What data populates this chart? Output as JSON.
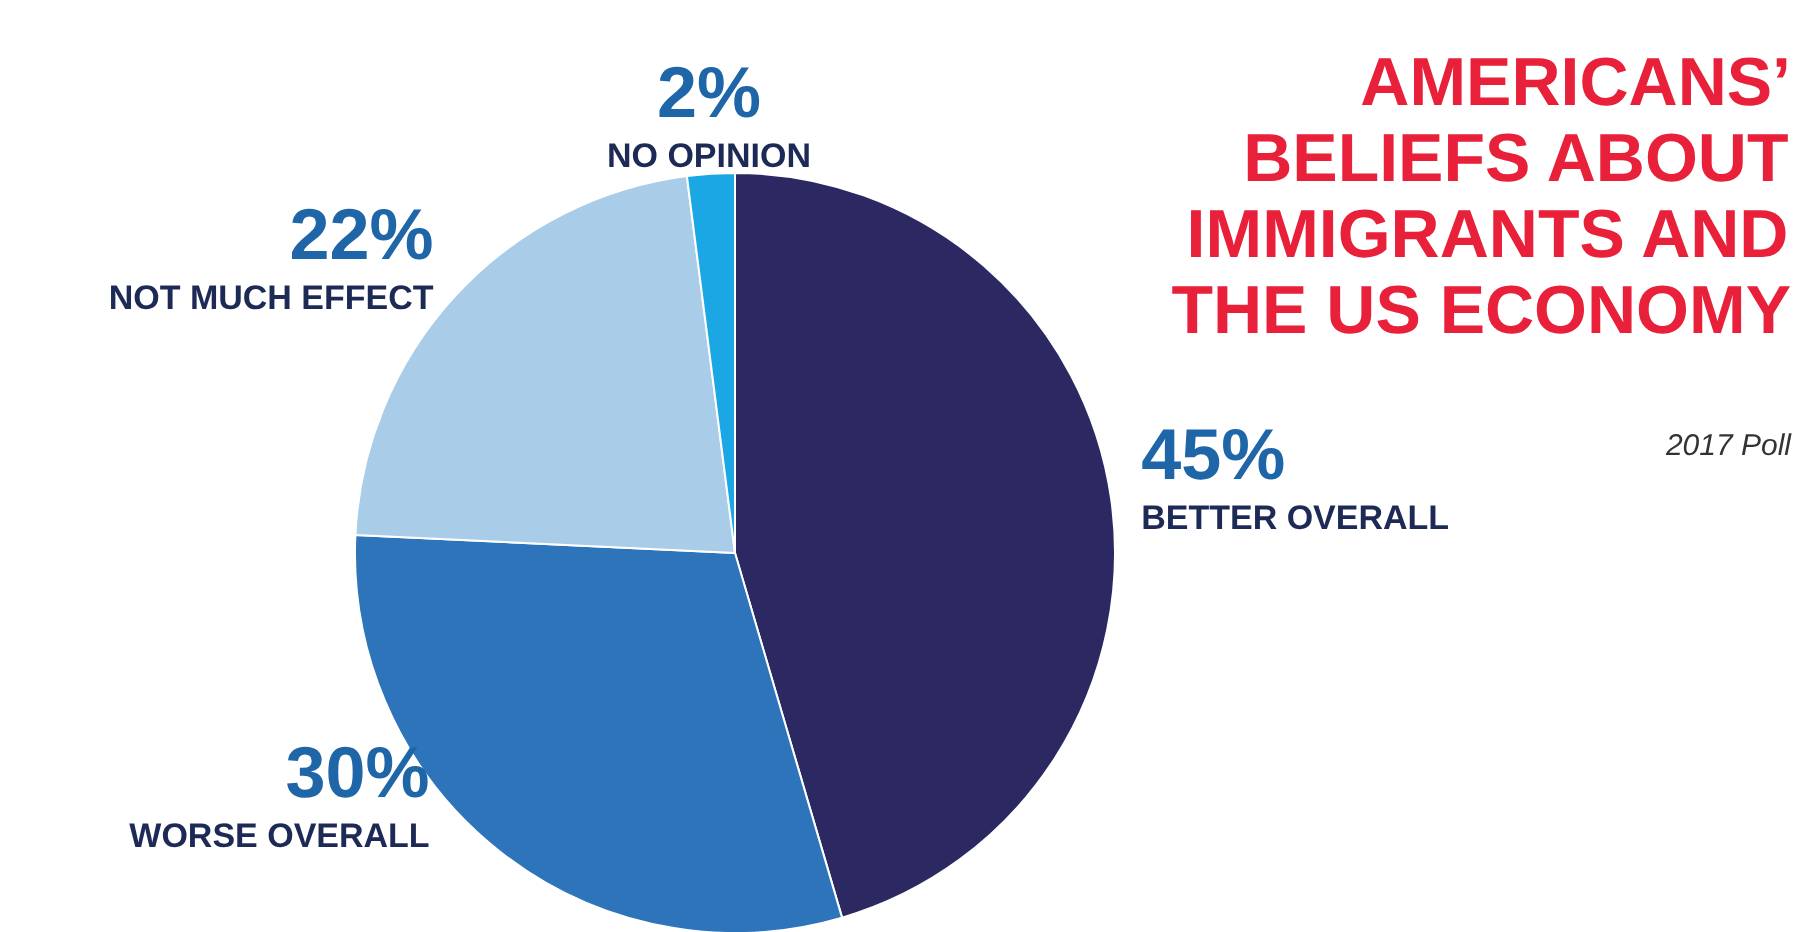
{
  "chart_data": {
    "type": "pie",
    "title": "AMERICANS’ BELIEFS ABOUT IMMIGRANTS AND THE US ECONOMY",
    "annotations": [
      "2017 Poll"
    ],
    "categories": [
      "BETTER OVERALL",
      "WORSE OVERALL",
      "NOT MUCH EFFECT",
      "NO OPINION"
    ],
    "values": [
      45,
      30,
      22,
      2
    ],
    "colors": [
      "#2b2862",
      "#2d74ba",
      "#a9cde9",
      "#1aa7e4"
    ],
    "data_labels": true,
    "value_labels": [
      "45%",
      "30%",
      "22%",
      "2%"
    ]
  }
}
